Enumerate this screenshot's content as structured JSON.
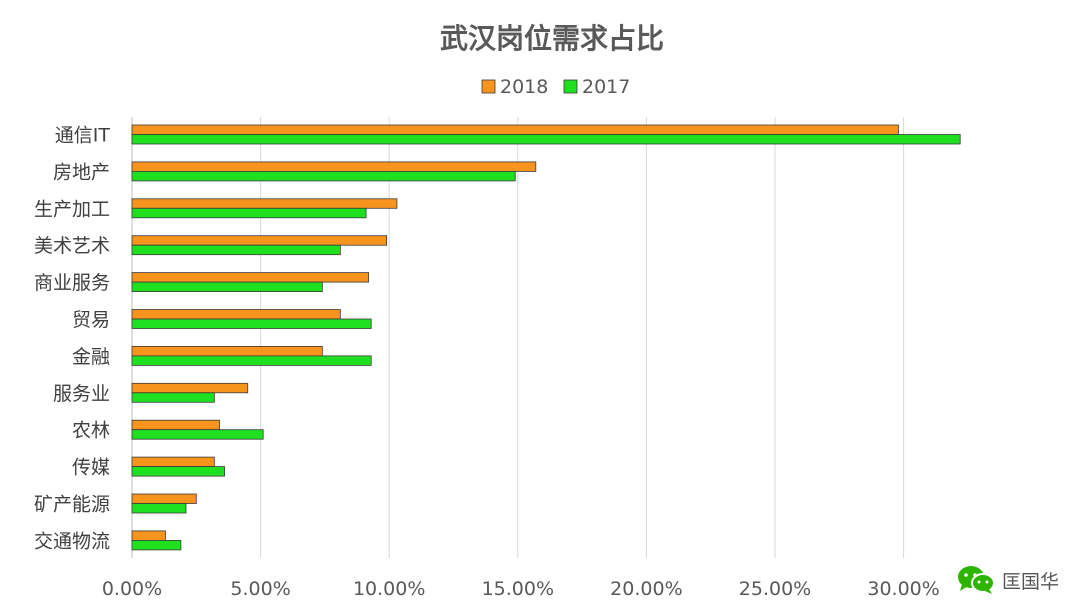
{
  "chart_data": {
    "type": "bar",
    "orientation": "horizontal",
    "title": "武汉岗位需求占比",
    "categories": [
      "通信IT",
      "房地产",
      "生产加工",
      "美术艺术",
      "商业服务",
      "贸易",
      "金融",
      "服务业",
      "农林",
      "传媒",
      "矿产能源",
      "交通物流"
    ],
    "series": [
      {
        "name": "2018",
        "color": "#F7941D",
        "values": [
          29.8,
          15.7,
          10.3,
          9.9,
          9.2,
          8.1,
          7.4,
          4.5,
          3.4,
          3.2,
          2.5,
          1.3
        ]
      },
      {
        "name": "2017",
        "color": "#1EE01E",
        "values": [
          32.2,
          14.9,
          9.1,
          8.1,
          7.4,
          9.3,
          9.3,
          3.2,
          5.1,
          3.6,
          2.1,
          1.9
        ]
      }
    ],
    "xlim": [
      0,
      35
    ],
    "xticks": [
      "0.00%",
      "5.00%",
      "10.00%",
      "15.00%",
      "20.00%",
      "25.00%",
      "30.00%"
    ],
    "xtick_values": [
      0,
      5,
      10,
      15,
      20,
      25,
      30
    ],
    "grid": true,
    "legend": "top"
  },
  "watermark": {
    "icon": "wechat-icon",
    "text": "匡国华"
  }
}
